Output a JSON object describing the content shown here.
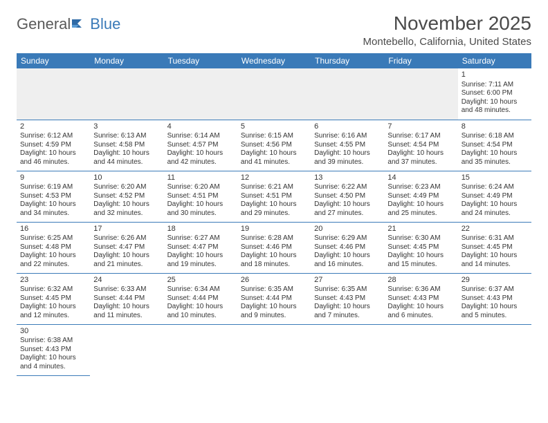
{
  "logo": {
    "text1": "General",
    "text2": "Blue"
  },
  "title": "November 2025",
  "location": "Montebello, California, United States",
  "colors": {
    "header_bg": "#3a7ab8",
    "header_text": "#ffffff",
    "border": "#3a7ab8",
    "text": "#333333",
    "empty_bg": "#efefef"
  },
  "weekdays": [
    "Sunday",
    "Monday",
    "Tuesday",
    "Wednesday",
    "Thursday",
    "Friday",
    "Saturday"
  ],
  "weeks": [
    [
      null,
      null,
      null,
      null,
      null,
      null,
      {
        "n": "1",
        "sr": "Sunrise: 7:11 AM",
        "ss": "Sunset: 6:00 PM",
        "dl": "Daylight: 10 hours and 48 minutes."
      }
    ],
    [
      {
        "n": "2",
        "sr": "Sunrise: 6:12 AM",
        "ss": "Sunset: 4:59 PM",
        "dl": "Daylight: 10 hours and 46 minutes."
      },
      {
        "n": "3",
        "sr": "Sunrise: 6:13 AM",
        "ss": "Sunset: 4:58 PM",
        "dl": "Daylight: 10 hours and 44 minutes."
      },
      {
        "n": "4",
        "sr": "Sunrise: 6:14 AM",
        "ss": "Sunset: 4:57 PM",
        "dl": "Daylight: 10 hours and 42 minutes."
      },
      {
        "n": "5",
        "sr": "Sunrise: 6:15 AM",
        "ss": "Sunset: 4:56 PM",
        "dl": "Daylight: 10 hours and 41 minutes."
      },
      {
        "n": "6",
        "sr": "Sunrise: 6:16 AM",
        "ss": "Sunset: 4:55 PM",
        "dl": "Daylight: 10 hours and 39 minutes."
      },
      {
        "n": "7",
        "sr": "Sunrise: 6:17 AM",
        "ss": "Sunset: 4:54 PM",
        "dl": "Daylight: 10 hours and 37 minutes."
      },
      {
        "n": "8",
        "sr": "Sunrise: 6:18 AM",
        "ss": "Sunset: 4:54 PM",
        "dl": "Daylight: 10 hours and 35 minutes."
      }
    ],
    [
      {
        "n": "9",
        "sr": "Sunrise: 6:19 AM",
        "ss": "Sunset: 4:53 PM",
        "dl": "Daylight: 10 hours and 34 minutes."
      },
      {
        "n": "10",
        "sr": "Sunrise: 6:20 AM",
        "ss": "Sunset: 4:52 PM",
        "dl": "Daylight: 10 hours and 32 minutes."
      },
      {
        "n": "11",
        "sr": "Sunrise: 6:20 AM",
        "ss": "Sunset: 4:51 PM",
        "dl": "Daylight: 10 hours and 30 minutes."
      },
      {
        "n": "12",
        "sr": "Sunrise: 6:21 AM",
        "ss": "Sunset: 4:51 PM",
        "dl": "Daylight: 10 hours and 29 minutes."
      },
      {
        "n": "13",
        "sr": "Sunrise: 6:22 AM",
        "ss": "Sunset: 4:50 PM",
        "dl": "Daylight: 10 hours and 27 minutes."
      },
      {
        "n": "14",
        "sr": "Sunrise: 6:23 AM",
        "ss": "Sunset: 4:49 PM",
        "dl": "Daylight: 10 hours and 25 minutes."
      },
      {
        "n": "15",
        "sr": "Sunrise: 6:24 AM",
        "ss": "Sunset: 4:49 PM",
        "dl": "Daylight: 10 hours and 24 minutes."
      }
    ],
    [
      {
        "n": "16",
        "sr": "Sunrise: 6:25 AM",
        "ss": "Sunset: 4:48 PM",
        "dl": "Daylight: 10 hours and 22 minutes."
      },
      {
        "n": "17",
        "sr": "Sunrise: 6:26 AM",
        "ss": "Sunset: 4:47 PM",
        "dl": "Daylight: 10 hours and 21 minutes."
      },
      {
        "n": "18",
        "sr": "Sunrise: 6:27 AM",
        "ss": "Sunset: 4:47 PM",
        "dl": "Daylight: 10 hours and 19 minutes."
      },
      {
        "n": "19",
        "sr": "Sunrise: 6:28 AM",
        "ss": "Sunset: 4:46 PM",
        "dl": "Daylight: 10 hours and 18 minutes."
      },
      {
        "n": "20",
        "sr": "Sunrise: 6:29 AM",
        "ss": "Sunset: 4:46 PM",
        "dl": "Daylight: 10 hours and 16 minutes."
      },
      {
        "n": "21",
        "sr": "Sunrise: 6:30 AM",
        "ss": "Sunset: 4:45 PM",
        "dl": "Daylight: 10 hours and 15 minutes."
      },
      {
        "n": "22",
        "sr": "Sunrise: 6:31 AM",
        "ss": "Sunset: 4:45 PM",
        "dl": "Daylight: 10 hours and 14 minutes."
      }
    ],
    [
      {
        "n": "23",
        "sr": "Sunrise: 6:32 AM",
        "ss": "Sunset: 4:45 PM",
        "dl": "Daylight: 10 hours and 12 minutes."
      },
      {
        "n": "24",
        "sr": "Sunrise: 6:33 AM",
        "ss": "Sunset: 4:44 PM",
        "dl": "Daylight: 10 hours and 11 minutes."
      },
      {
        "n": "25",
        "sr": "Sunrise: 6:34 AM",
        "ss": "Sunset: 4:44 PM",
        "dl": "Daylight: 10 hours and 10 minutes."
      },
      {
        "n": "26",
        "sr": "Sunrise: 6:35 AM",
        "ss": "Sunset: 4:44 PM",
        "dl": "Daylight: 10 hours and 9 minutes."
      },
      {
        "n": "27",
        "sr": "Sunrise: 6:35 AM",
        "ss": "Sunset: 4:43 PM",
        "dl": "Daylight: 10 hours and 7 minutes."
      },
      {
        "n": "28",
        "sr": "Sunrise: 6:36 AM",
        "ss": "Sunset: 4:43 PM",
        "dl": "Daylight: 10 hours and 6 minutes."
      },
      {
        "n": "29",
        "sr": "Sunrise: 6:37 AM",
        "ss": "Sunset: 4:43 PM",
        "dl": "Daylight: 10 hours and 5 minutes."
      }
    ],
    [
      {
        "n": "30",
        "sr": "Sunrise: 6:38 AM",
        "ss": "Sunset: 4:43 PM",
        "dl": "Daylight: 10 hours and 4 minutes."
      },
      null,
      null,
      null,
      null,
      null,
      null
    ]
  ]
}
